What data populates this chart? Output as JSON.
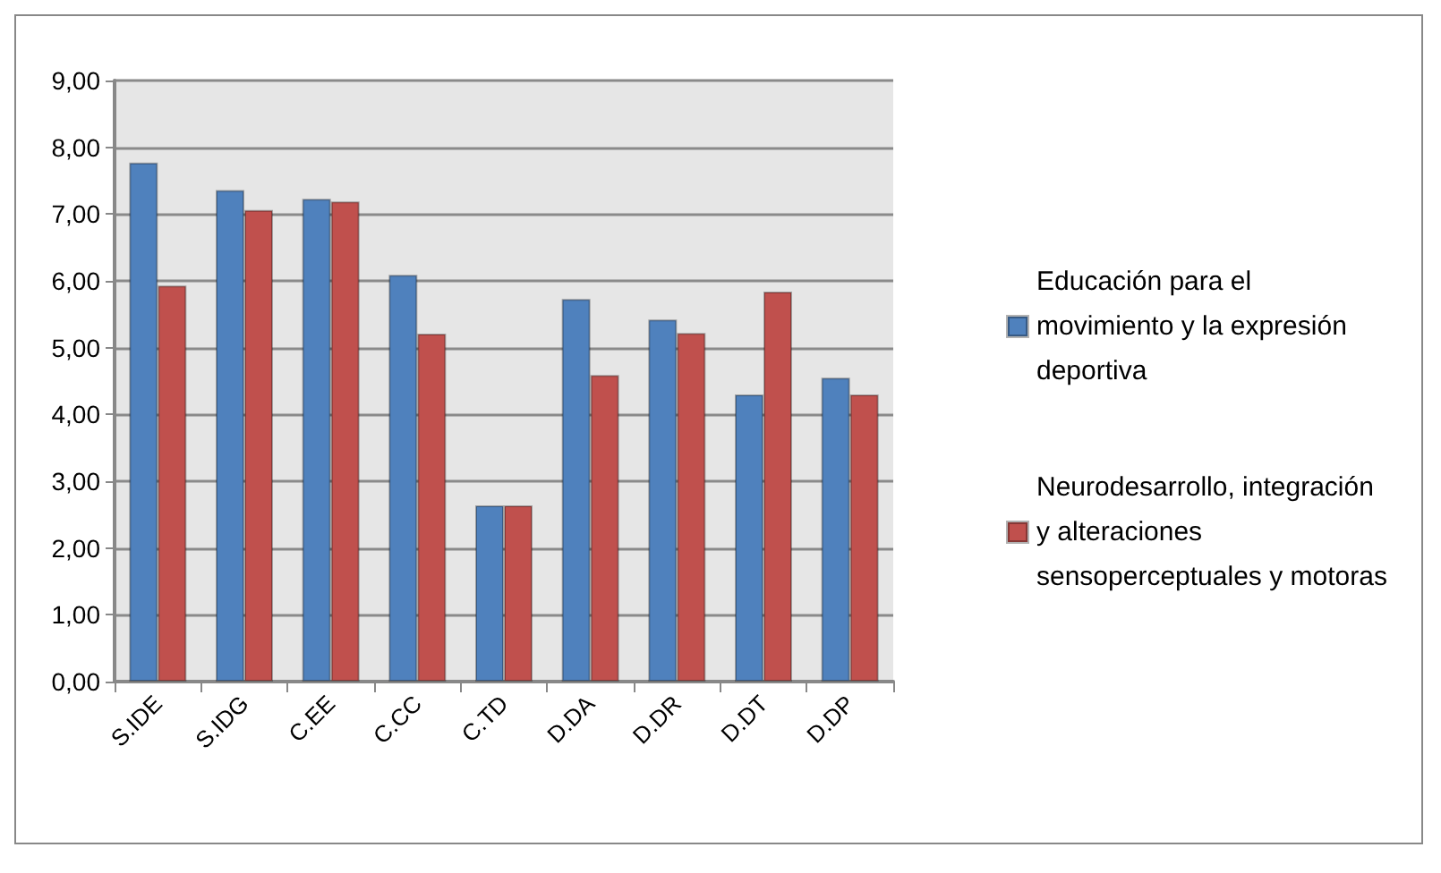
{
  "chart_data": {
    "type": "bar",
    "categories": [
      "S.IDE",
      "S.IDG",
      "C.EE",
      "C.CC",
      "C.TD",
      "D.DA",
      "D.DR",
      "D.DT",
      "D.DP"
    ],
    "series": [
      {
        "name": "Educación para el movimiento y la expresión deportiva",
        "color": "#4f81bd",
        "values": [
          7.77,
          7.36,
          7.23,
          6.09,
          2.64,
          5.73,
          5.42,
          4.3,
          4.55
        ]
      },
      {
        "name": "Neurodesarrollo, integración y alteraciones sensoperceptuales y motoras",
        "color": "#c0504d",
        "values": [
          5.93,
          7.06,
          7.19,
          5.21,
          2.64,
          4.59,
          5.22,
          5.84,
          4.3
        ]
      }
    ],
    "ylim": [
      0,
      9
    ],
    "yticks": [
      {
        "value": 0,
        "label": "0,00"
      },
      {
        "value": 1,
        "label": "1,00"
      },
      {
        "value": 2,
        "label": "2,00"
      },
      {
        "value": 3,
        "label": "3,00"
      },
      {
        "value": 4,
        "label": "4,00"
      },
      {
        "value": 5,
        "label": "5,00"
      },
      {
        "value": 6,
        "label": "6,00"
      },
      {
        "value": 7,
        "label": "7,00"
      },
      {
        "value": 8,
        "label": "8,00"
      },
      {
        "value": 9,
        "label": "9,00"
      }
    ],
    "grid": "y",
    "legend": "right"
  }
}
